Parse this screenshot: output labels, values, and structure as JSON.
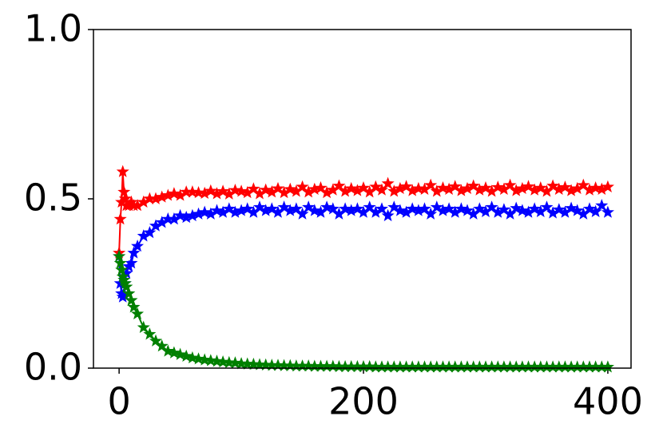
{
  "chart_data": {
    "type": "line",
    "marker": "star",
    "x": [
      0,
      1,
      2,
      3,
      4,
      5,
      6,
      8,
      10,
      12,
      15,
      20,
      25,
      30,
      35,
      40,
      45,
      50,
      55,
      60,
      65,
      70,
      75,
      80,
      85,
      90,
      95,
      100,
      105,
      110,
      115,
      120,
      125,
      130,
      135,
      140,
      145,
      150,
      155,
      160,
      165,
      170,
      175,
      180,
      185,
      190,
      195,
      200,
      205,
      210,
      215,
      220,
      225,
      230,
      235,
      240,
      245,
      250,
      255,
      260,
      265,
      270,
      275,
      280,
      285,
      290,
      295,
      300,
      305,
      310,
      315,
      320,
      325,
      330,
      335,
      340,
      345,
      350,
      355,
      360,
      365,
      370,
      375,
      380,
      385,
      390,
      395,
      400
    ],
    "series": [
      {
        "color": "#ff0000",
        "values": [
          0.34,
          0.44,
          0.49,
          0.58,
          0.52,
          0.5,
          0.48,
          0.48,
          0.49,
          0.48,
          0.48,
          0.49,
          0.5,
          0.5,
          0.505,
          0.51,
          0.515,
          0.51,
          0.52,
          0.52,
          0.518,
          0.516,
          0.523,
          0.515,
          0.522,
          0.514,
          0.525,
          0.522,
          0.518,
          0.529,
          0.515,
          0.526,
          0.52,
          0.53,
          0.518,
          0.528,
          0.522,
          0.535,
          0.52,
          0.528,
          0.532,
          0.518,
          0.526,
          0.538,
          0.522,
          0.53,
          0.524,
          0.532,
          0.52,
          0.535,
          0.526,
          0.545,
          0.522,
          0.53,
          0.536,
          0.524,
          0.53,
          0.528,
          0.54,
          0.522,
          0.532,
          0.528,
          0.536,
          0.524,
          0.53,
          0.538,
          0.526,
          0.532,
          0.522,
          0.534,
          0.528,
          0.54,
          0.524,
          0.53,
          0.536,
          0.526,
          0.532,
          0.522,
          0.538,
          0.528,
          0.534,
          0.524,
          0.53,
          0.54,
          0.526,
          0.532,
          0.528,
          0.535
        ]
      },
      {
        "color": "#0000ff",
        "values": [
          0.33,
          0.25,
          0.22,
          0.21,
          0.22,
          0.25,
          0.28,
          0.3,
          0.31,
          0.34,
          0.36,
          0.39,
          0.4,
          0.42,
          0.43,
          0.44,
          0.44,
          0.45,
          0.445,
          0.45,
          0.455,
          0.46,
          0.455,
          0.465,
          0.46,
          0.47,
          0.46,
          0.465,
          0.47,
          0.46,
          0.475,
          0.465,
          0.47,
          0.46,
          0.475,
          0.465,
          0.47,
          0.455,
          0.475,
          0.465,
          0.46,
          0.475,
          0.47,
          0.455,
          0.47,
          0.465,
          0.47,
          0.46,
          0.475,
          0.46,
          0.47,
          0.45,
          0.475,
          0.465,
          0.46,
          0.47,
          0.465,
          0.47,
          0.455,
          0.475,
          0.465,
          0.47,
          0.46,
          0.47,
          0.465,
          0.455,
          0.47,
          0.462,
          0.475,
          0.46,
          0.468,
          0.455,
          0.472,
          0.465,
          0.46,
          0.47,
          0.462,
          0.475,
          0.458,
          0.468,
          0.46,
          0.472,
          0.465,
          0.455,
          0.47,
          0.462,
          0.48,
          0.46
        ]
      },
      {
        "color": "#008000",
        "values": [
          0.33,
          0.31,
          0.29,
          0.27,
          0.26,
          0.25,
          0.24,
          0.22,
          0.2,
          0.18,
          0.16,
          0.12,
          0.1,
          0.08,
          0.065,
          0.05,
          0.045,
          0.04,
          0.035,
          0.03,
          0.027,
          0.024,
          0.022,
          0.02,
          0.018,
          0.016,
          0.015,
          0.013,
          0.012,
          0.011,
          0.01,
          0.009,
          0.008,
          0.008,
          0.007,
          0.007,
          0.006,
          0.006,
          0.006,
          0.005,
          0.005,
          0.005,
          0.005,
          0.004,
          0.004,
          0.004,
          0.004,
          0.004,
          0.004,
          0.003,
          0.003,
          0.003,
          0.003,
          0.003,
          0.003,
          0.003,
          0.003,
          0.003,
          0.003,
          0.003,
          0.003,
          0.003,
          0.003,
          0.003,
          0.003,
          0.003,
          0.003,
          0.003,
          0.003,
          0.003,
          0.003,
          0.003,
          0.003,
          0.003,
          0.003,
          0.003,
          0.003,
          0.003,
          0.003,
          0.003,
          0.003,
          0.003,
          0.003,
          0.003,
          0.003,
          0.003,
          0.003,
          0.003
        ]
      }
    ],
    "xlim": [
      -21,
      419
    ],
    "ylim": [
      0,
      1
    ],
    "xticks": [
      0,
      200,
      400
    ],
    "yticks": [
      {
        "value": 0,
        "label": "0.0"
      },
      {
        "value": 0.5,
        "label": "0.5"
      },
      {
        "value": 1,
        "label": "1.0"
      }
    ],
    "grid": false
  }
}
